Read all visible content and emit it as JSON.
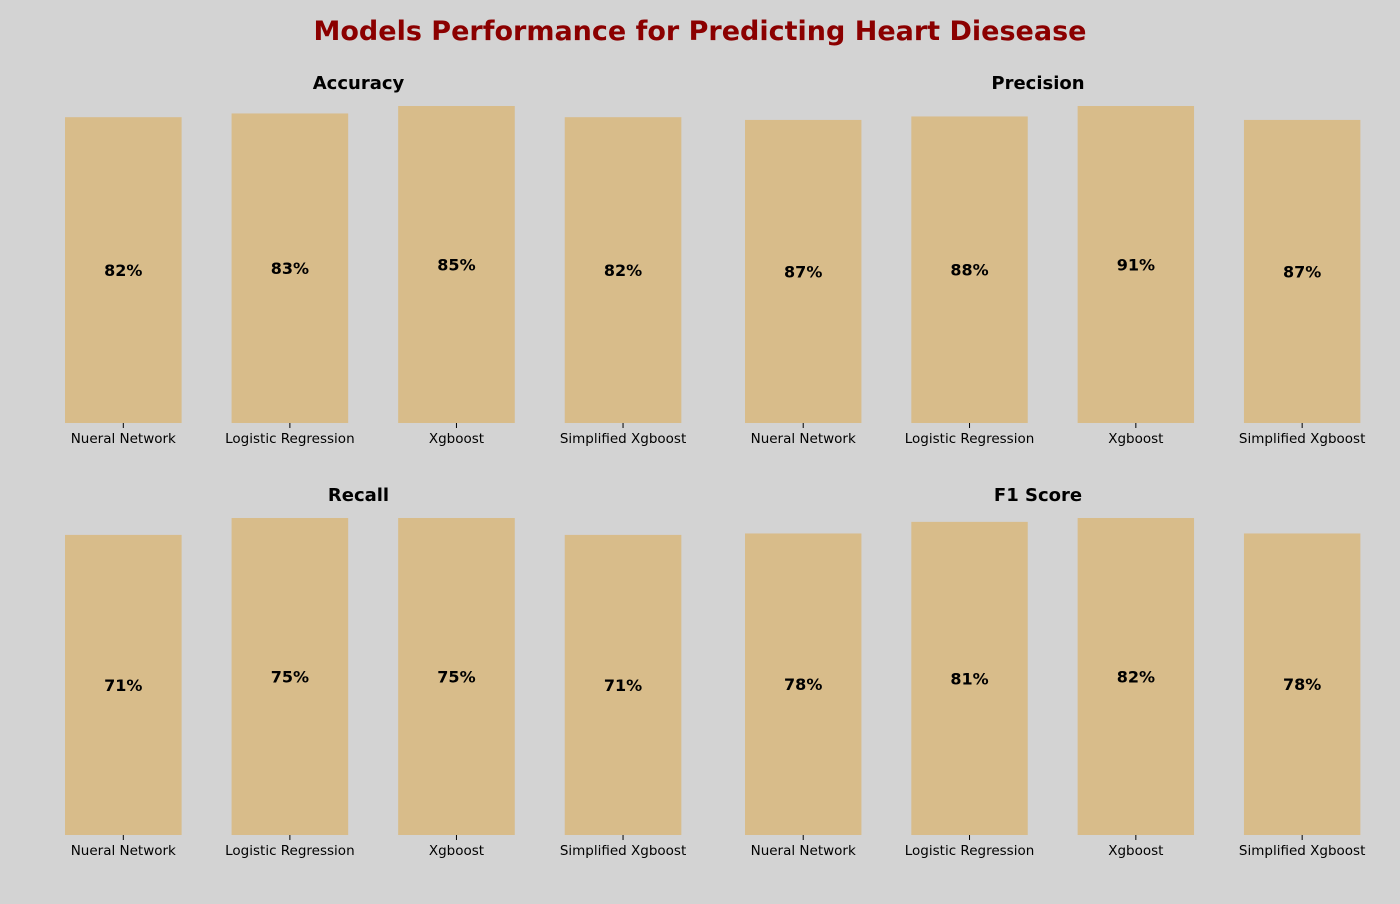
{
  "figure": {
    "title": "Models Performance for Predicting Heart Diesease",
    "title_color": "#8b0000",
    "background": "#d3d3d3",
    "bar_color": "#d8bc8a"
  },
  "chart_data": [
    {
      "type": "bar",
      "title": "Accuracy",
      "categories": [
        "Nueral Network",
        "Logistic Regression",
        "Xgboost",
        "Simplified Xgboost"
      ],
      "values": [
        82,
        83,
        85,
        82
      ],
      "labels": [
        "82%",
        "83%",
        "85%",
        "82%"
      ],
      "xlabel": "",
      "ylabel": "",
      "grid": false
    },
    {
      "type": "bar",
      "title": "Precision",
      "categories": [
        "Nueral Network",
        "Logistic Regression",
        "Xgboost",
        "Simplified Xgboost"
      ],
      "values": [
        87,
        88,
        91,
        87
      ],
      "labels": [
        "87%",
        "88%",
        "91%",
        "87%"
      ],
      "xlabel": "",
      "ylabel": "",
      "grid": false
    },
    {
      "type": "bar",
      "title": "Recall",
      "categories": [
        "Nueral Network",
        "Logistic Regression",
        "Xgboost",
        "Simplified Xgboost"
      ],
      "values": [
        71,
        75,
        75,
        71
      ],
      "labels": [
        "71%",
        "75%",
        "75%",
        "71%"
      ],
      "xlabel": "",
      "ylabel": "",
      "grid": false
    },
    {
      "type": "bar",
      "title": "F1 Score",
      "categories": [
        "Nueral Network",
        "Logistic Regression",
        "Xgboost",
        "Simplified Xgboost"
      ],
      "values": [
        78,
        81,
        82,
        78
      ],
      "labels": [
        "78%",
        "81%",
        "82%",
        "78%"
      ],
      "xlabel": "",
      "ylabel": "",
      "grid": false
    }
  ]
}
